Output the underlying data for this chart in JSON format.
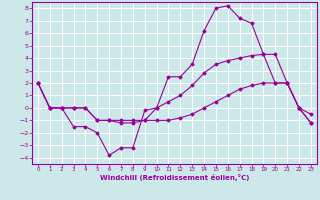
{
  "xlabel": "Windchill (Refroidissement éolien,°C)",
  "background_color": "#cce8e8",
  "grid_color": "#ffffff",
  "line_color": "#990099",
  "xlim": [
    -0.5,
    23.5
  ],
  "ylim": [
    -4.5,
    8.5
  ],
  "xticks": [
    0,
    1,
    2,
    3,
    4,
    5,
    6,
    7,
    8,
    9,
    10,
    11,
    12,
    13,
    14,
    15,
    16,
    17,
    18,
    19,
    20,
    21,
    22,
    23
  ],
  "yticks": [
    -4,
    -3,
    -2,
    -1,
    0,
    1,
    2,
    3,
    4,
    5,
    6,
    7,
    8
  ],
  "series": [
    {
      "x": [
        0,
        1,
        2,
        3,
        4,
        5,
        6,
        7,
        8,
        9,
        10,
        11,
        12,
        13,
        14,
        15,
        16,
        17,
        18,
        19,
        20,
        21,
        22,
        23
      ],
      "y": [
        2.0,
        0.0,
        0.0,
        -1.5,
        -1.5,
        -2.0,
        -3.8,
        -3.2,
        -3.2,
        -0.2,
        0.0,
        2.5,
        2.5,
        3.5,
        6.2,
        8.0,
        8.2,
        7.2,
        6.8,
        4.3,
        2.0,
        2.0,
        0.0,
        -0.5
      ]
    },
    {
      "x": [
        0,
        1,
        2,
        3,
        4,
        5,
        6,
        7,
        8,
        9,
        10,
        11,
        12,
        13,
        14,
        15,
        16,
        17,
        18,
        19,
        20,
        21,
        22,
        23
      ],
      "y": [
        2.0,
        0.0,
        0.0,
        0.0,
        0.0,
        -1.0,
        -1.0,
        -1.2,
        -1.2,
        -1.0,
        0.0,
        0.5,
        1.0,
        1.8,
        2.8,
        3.5,
        3.8,
        4.0,
        4.2,
        4.3,
        4.3,
        2.0,
        0.0,
        -1.2
      ]
    },
    {
      "x": [
        0,
        1,
        2,
        3,
        4,
        5,
        6,
        7,
        8,
        9,
        10,
        11,
        12,
        13,
        14,
        15,
        16,
        17,
        18,
        19,
        20,
        21,
        22,
        23
      ],
      "y": [
        2.0,
        0.0,
        0.0,
        0.0,
        0.0,
        -1.0,
        -1.0,
        -1.0,
        -1.0,
        -1.0,
        -1.0,
        -1.0,
        -0.8,
        -0.5,
        0.0,
        0.5,
        1.0,
        1.5,
        1.8,
        2.0,
        2.0,
        2.0,
        0.0,
        -1.2
      ]
    }
  ]
}
